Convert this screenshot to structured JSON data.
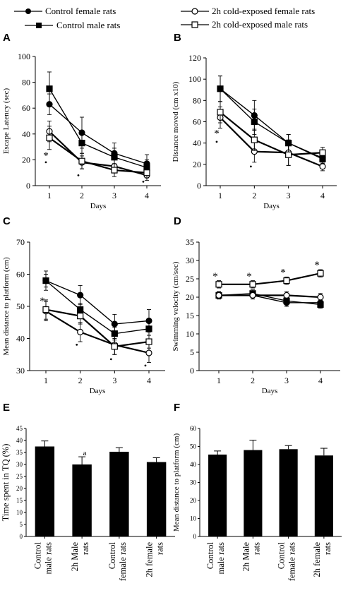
{
  "legend": {
    "items": [
      {
        "label": "Control female rats",
        "marker": "filled-circle"
      },
      {
        "label": "Control male rats",
        "marker": "filled-square"
      },
      {
        "label": "2h cold-exposed female rats",
        "marker": "open-circle"
      },
      {
        "label": "2h cold-exposed male rats",
        "marker": "open-square"
      }
    ]
  },
  "colors": {
    "ink": "#000000",
    "open_fill": "#ffffff",
    "bar_fill": "#000000"
  },
  "chart_data": [
    {
      "panel": "A",
      "type": "line",
      "xlabel": "Days",
      "ylabel": "Escape Latency (sec)",
      "x": [
        1,
        2,
        3,
        4
      ],
      "xticks": [
        "1",
        "2",
        "3",
        "4"
      ],
      "ylim": [
        0,
        100
      ],
      "yticks": [
        "0",
        "20",
        "40",
        "60",
        "80",
        "100"
      ],
      "series": [
        {
          "name": "Control female rats",
          "values": [
            63,
            41,
            25,
            17
          ],
          "err": [
            8,
            12,
            8,
            7
          ]
        },
        {
          "name": "Control male rats",
          "values": [
            75,
            33,
            22,
            14
          ],
          "err": [
            13,
            8,
            7,
            6
          ]
        },
        {
          "name": "2h cold-exposed female rats",
          "values": [
            42,
            18,
            15,
            8
          ],
          "err": [
            8,
            5,
            5,
            4
          ]
        },
        {
          "name": "2h cold-exposed male rats",
          "values": [
            37,
            19,
            12,
            10
          ],
          "err": [
            9,
            6,
            5,
            4
          ]
        }
      ],
      "annotations": [
        {
          "x": 1,
          "y": 24,
          "text": "*"
        },
        {
          "x": 1,
          "y": 18,
          "text": "•"
        },
        {
          "x": 2,
          "y": 8,
          "text": "•"
        },
        {
          "x": 4,
          "y": 3,
          "text": "•"
        }
      ]
    },
    {
      "panel": "B",
      "type": "line",
      "xlabel": "Days",
      "ylabel": "Distance moved (cm x10)",
      "x": [
        1,
        2,
        3,
        4
      ],
      "xticks": [
        "1",
        "2",
        "3",
        "4"
      ],
      "ylim": [
        0,
        120
      ],
      "yticks": [
        "0",
        "20",
        "40",
        "60",
        "80",
        "100",
        "120"
      ],
      "series": [
        {
          "name": "Control female rats",
          "values": [
            91,
            66,
            40,
            26
          ],
          "err": [
            12,
            14,
            8,
            5
          ]
        },
        {
          "name": "Control male rats",
          "values": [
            91,
            60,
            40,
            25
          ],
          "err": [
            12,
            12,
            8,
            5
          ]
        },
        {
          "name": "2h cold-exposed female rats",
          "values": [
            64,
            32,
            31,
            18
          ],
          "err": [
            10,
            10,
            12,
            4
          ]
        },
        {
          "name": "2h cold-exposed male rats",
          "values": [
            69,
            43,
            29,
            31
          ],
          "err": [
            10,
            10,
            10,
            5
          ]
        }
      ],
      "annotations": [
        {
          "x": 1,
          "y": 50,
          "text": "*"
        },
        {
          "x": 1,
          "y": 41,
          "text": "•"
        },
        {
          "x": 2,
          "y": 18,
          "text": "•"
        }
      ]
    },
    {
      "panel": "C",
      "type": "line",
      "xlabel": "Days",
      "ylabel": "Mean distance to platform (cm)",
      "x": [
        1,
        2,
        3,
        4
      ],
      "xticks": [
        "1",
        "2",
        "3",
        "4"
      ],
      "ylim": [
        30,
        70
      ],
      "yticks": [
        "30",
        "40",
        "50",
        "60",
        "70"
      ],
      "series": [
        {
          "name": "Control female rats",
          "values": [
            58,
            53.5,
            44.5,
            45.5
          ],
          "err": [
            3,
            3,
            3,
            3.5
          ]
        },
        {
          "name": "Control male rats",
          "values": [
            58,
            49,
            41.5,
            43
          ],
          "err": [
            2,
            2,
            2,
            2
          ]
        },
        {
          "name": "2h cold-exposed female rats",
          "values": [
            48.5,
            42,
            38,
            35.5
          ],
          "err": [
            3,
            3,
            3,
            3
          ]
        },
        {
          "name": "2h cold-exposed male rats",
          "values": [
            49,
            47,
            37.5,
            39
          ],
          "err": [
            3,
            2.5,
            2.5,
            2
          ]
        }
      ],
      "annotations": [
        {
          "x": 1,
          "y": 52,
          "text": "*"
        },
        {
          "x": 2,
          "y": 38,
          "text": "•"
        },
        {
          "x": 3,
          "y": 33.5,
          "text": "•"
        },
        {
          "x": 4,
          "y": 31.5,
          "text": "•"
        }
      ]
    },
    {
      "panel": "D",
      "type": "line",
      "xlabel": "Days",
      "ylabel": "Swimming velocity (cm/sec)",
      "x": [
        1,
        2,
        3,
        4
      ],
      "xticks": [
        "1",
        "2",
        "3",
        "4"
      ],
      "ylim": [
        0,
        35
      ],
      "yticks": [
        "0",
        "5",
        "10",
        "15",
        "20",
        "25",
        "30",
        "35"
      ],
      "series": [
        {
          "name": "Control female rats",
          "values": [
            20.5,
            20.5,
            18.5,
            18.5
          ],
          "err": [
            1,
            1,
            1,
            1
          ]
        },
        {
          "name": "Control male rats",
          "values": [
            20.5,
            21,
            19,
            18
          ],
          "err": [
            1,
            1,
            1,
            1
          ]
        },
        {
          "name": "2h cold-exposed female rats",
          "values": [
            20.5,
            20.5,
            20.5,
            20
          ],
          "err": [
            1,
            1,
            1,
            1
          ]
        },
        {
          "name": "2h cold-exposed male rats",
          "values": [
            23.5,
            23.5,
            24.5,
            26.5
          ],
          "err": [
            1,
            1,
            1,
            1
          ]
        }
      ],
      "annotations": [
        {
          "x": 1,
          "y": 26,
          "text": "*"
        },
        {
          "x": 2,
          "y": 26,
          "text": "*"
        },
        {
          "x": 3,
          "y": 27,
          "text": "*"
        },
        {
          "x": 4,
          "y": 29,
          "text": "*"
        }
      ]
    },
    {
      "panel": "E",
      "type": "bar",
      "ylabel": "Time spent in TQ (%)",
      "categories": [
        "Control male rats",
        "2h Male rats",
        "Control female rats",
        "2h female rats"
      ],
      "category_lines": [
        [
          "Control",
          "male rats"
        ],
        [
          "2h Male",
          "rats"
        ],
        [
          "Control",
          "female rats"
        ],
        [
          "2h female",
          "rats"
        ]
      ],
      "values": [
        37.5,
        30,
        35.3,
        31
      ],
      "err": [
        2.3,
        3.2,
        1.7,
        1.8
      ],
      "ylim": [
        0,
        45
      ],
      "yticks": [
        "0",
        "5",
        "10",
        "15",
        "20",
        "25",
        "30",
        "35",
        "40",
        "45"
      ],
      "annotations": [
        {
          "category": "2h Male rats",
          "text": "a"
        }
      ]
    },
    {
      "panel": "F",
      "type": "bar",
      "ylabel": "Mean distance to platform (cm)",
      "categories": [
        "Control male rats",
        "2h Male rats",
        "Control female rats",
        "2h female rats"
      ],
      "category_lines": [
        [
          "Control",
          "male rats"
        ],
        [
          "2h Male",
          "rats"
        ],
        [
          "Control",
          "female rats"
        ],
        [
          "2h female",
          "rats"
        ]
      ],
      "values": [
        45.5,
        48,
        48.5,
        45
      ],
      "err": [
        2,
        5.5,
        2,
        4
      ],
      "ylim": [
        0,
        60
      ],
      "yticks": [
        "0",
        "10",
        "20",
        "30",
        "40",
        "50",
        "60"
      ]
    }
  ]
}
